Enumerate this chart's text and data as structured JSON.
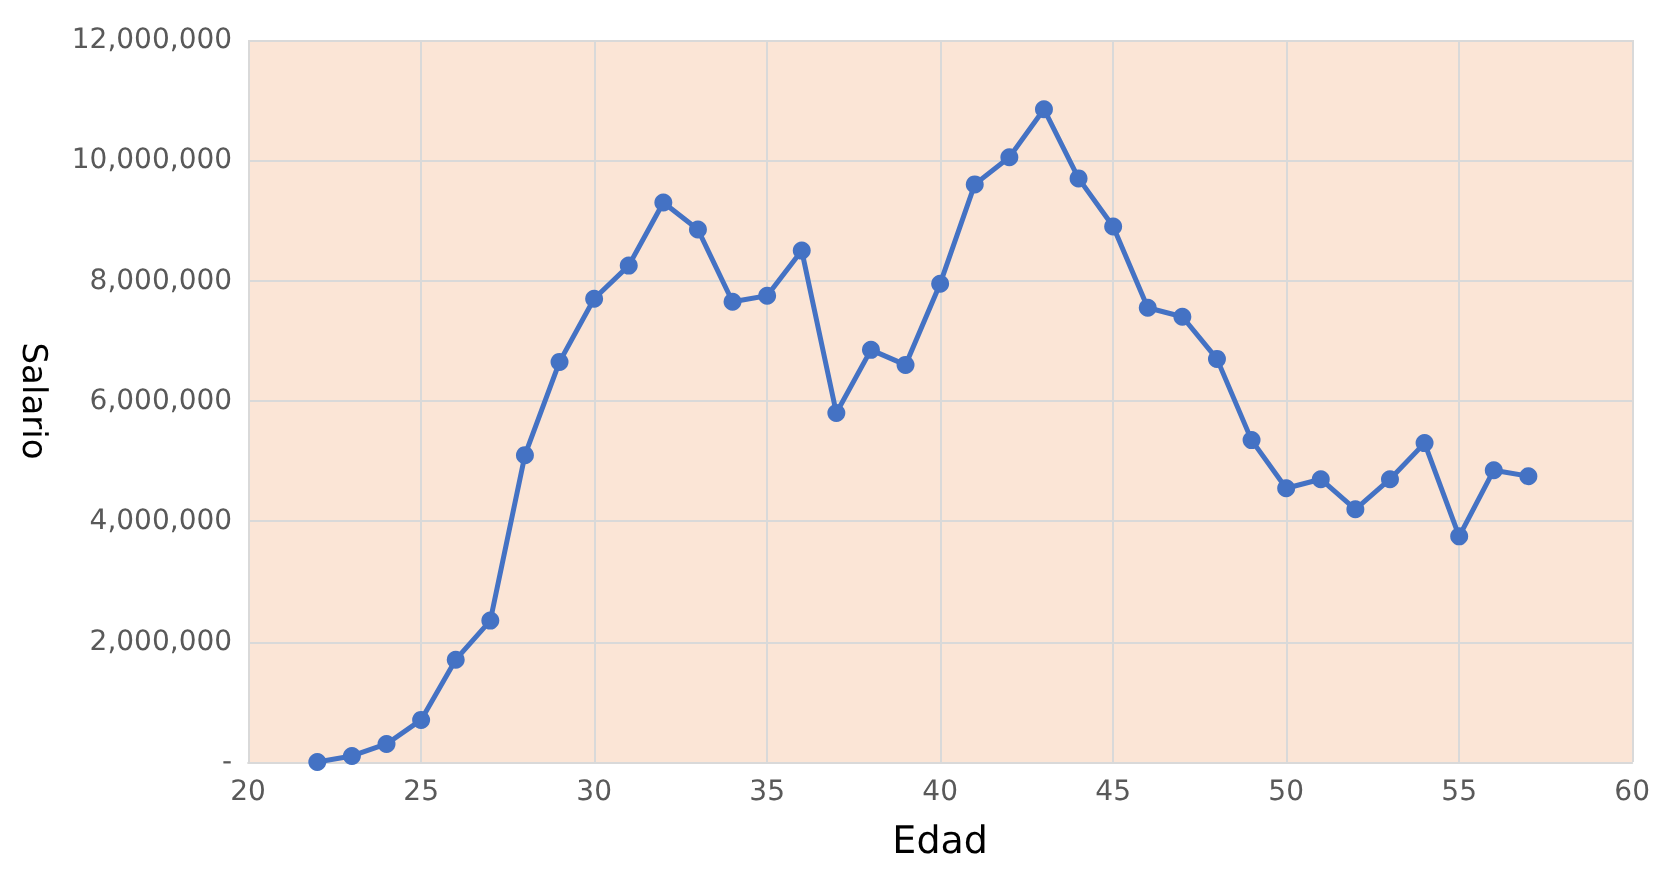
{
  "chart_data": {
    "type": "line",
    "xlabel": "Edad",
    "ylabel": "Salario",
    "x": [
      22,
      23,
      24,
      25,
      26,
      27,
      28,
      29,
      30,
      31,
      32,
      33,
      34,
      35,
      36,
      37,
      38,
      39,
      40,
      41,
      42,
      43,
      44,
      45,
      46,
      47,
      48,
      49,
      50,
      51,
      52,
      53,
      54,
      55,
      56,
      57
    ],
    "series": [
      {
        "color": "#4472c4",
        "values": [
          0,
          100000,
          300000,
          700000,
          1700000,
          2350000,
          5100000,
          6650000,
          7700000,
          8250000,
          9300000,
          8850000,
          7650000,
          7750000,
          8500000,
          5800000,
          6850000,
          6600000,
          7950000,
          9600000,
          10050000,
          10850000,
          9700000,
          8900000,
          7550000,
          7400000,
          6700000,
          5350000,
          4550000,
          4700000,
          4200000,
          4700000,
          5300000,
          3750000,
          4850000,
          4750000
        ]
      }
    ],
    "xlim": [
      20,
      60
    ],
    "xticks": [
      20,
      25,
      30,
      35,
      40,
      45,
      50,
      55,
      60
    ],
    "ylim": [
      0,
      12000000
    ],
    "yticks": [
      {
        "value": 0,
        "label": "-"
      },
      {
        "value": 2000000,
        "label": "2,000,000"
      },
      {
        "value": 4000000,
        "label": "4,000,000"
      },
      {
        "value": 6000000,
        "label": "6,000,000"
      },
      {
        "value": 8000000,
        "label": "8,000,000"
      },
      {
        "value": 10000000,
        "label": "10,000,000"
      },
      {
        "value": 12000000,
        "label": "12,000,000"
      }
    ],
    "grid": true,
    "marker": "circle",
    "line_style": "solid"
  }
}
